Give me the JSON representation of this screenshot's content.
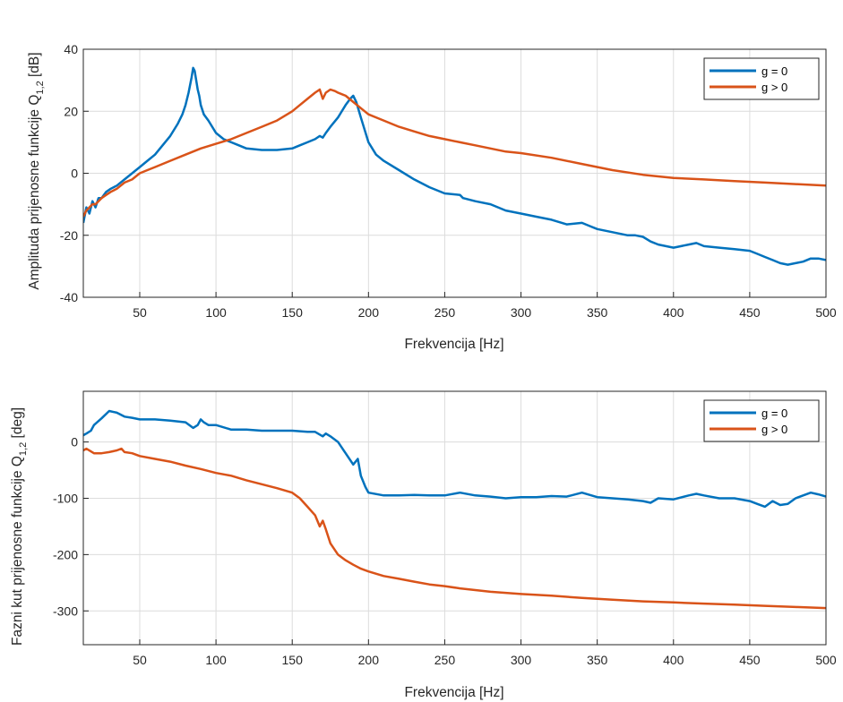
{
  "chart_data": [
    {
      "type": "line",
      "xlabel": "Frekvencija [Hz]",
      "ylabel_main": "Amplituda prijenosne funkcije Q",
      "ylabel_sub": "1,2",
      "ylabel_unit": " [dB]",
      "xlim": [
        13,
        500
      ],
      "ylim": [
        -40,
        40
      ],
      "xticks": [
        50,
        100,
        150,
        200,
        250,
        300,
        350,
        400,
        450,
        500
      ],
      "yticks": [
        -40,
        -20,
        0,
        20,
        40
      ],
      "grid": true,
      "legend_position": "top-right",
      "series": [
        {
          "name": "g = 0",
          "color": "#0072BD",
          "x": [
            13,
            15,
            17,
            19,
            21,
            23,
            25,
            28,
            31,
            35,
            40,
            45,
            50,
            55,
            60,
            65,
            70,
            75,
            78,
            80,
            82,
            84,
            85,
            86,
            87,
            88,
            89,
            90,
            92,
            95,
            100,
            105,
            110,
            115,
            120,
            130,
            140,
            150,
            155,
            160,
            165,
            168,
            170,
            172,
            175,
            180,
            185,
            188,
            190,
            192,
            195,
            200,
            205,
            210,
            220,
            230,
            240,
            250,
            260,
            262,
            270,
            280,
            290,
            300,
            310,
            320,
            330,
            340,
            345,
            350,
            360,
            370,
            375,
            380,
            385,
            390,
            400,
            410,
            415,
            420,
            430,
            440,
            450,
            455,
            460,
            465,
            470,
            475,
            480,
            485,
            490,
            495,
            500
          ],
          "y": [
            -16,
            -11,
            -13,
            -9,
            -11,
            -8,
            -8,
            -6,
            -5,
            -4,
            -2,
            0,
            2,
            4,
            6,
            9,
            12,
            16,
            19,
            22,
            26,
            31,
            34,
            33,
            30,
            27,
            25,
            22,
            19,
            17,
            13,
            11,
            10,
            9,
            8,
            7.5,
            7.5,
            8,
            9,
            10,
            11,
            12,
            11.5,
            13,
            15,
            18,
            22,
            24,
            25,
            23,
            18,
            10,
            6,
            4,
            1,
            -2,
            -4.5,
            -6.5,
            -7,
            -8,
            -9,
            -10,
            -12,
            -13,
            -14,
            -15,
            -16.5,
            -16,
            -17,
            -18,
            -19,
            -20,
            -20,
            -20.5,
            -22,
            -23,
            -24,
            -23,
            -22.5,
            -23.5,
            -24,
            -24.5,
            -25,
            -26,
            -27,
            -28,
            -29,
            -29.5,
            -29,
            -28.5,
            -27.5,
            -27.5,
            -28
          ]
        },
        {
          "name": "g > 0",
          "color": "#D95319",
          "x": [
            13,
            15,
            17,
            19,
            21,
            23,
            25,
            28,
            31,
            35,
            40,
            45,
            50,
            55,
            60,
            65,
            70,
            80,
            90,
            100,
            110,
            120,
            130,
            140,
            150,
            155,
            160,
            165,
            168,
            170,
            172,
            175,
            178,
            180,
            185,
            190,
            195,
            200,
            210,
            220,
            230,
            240,
            250,
            260,
            270,
            280,
            290,
            300,
            320,
            340,
            360,
            380,
            400,
            420,
            440,
            460,
            480,
            500
          ],
          "y": [
            -14,
            -12,
            -11,
            -10,
            -10,
            -9,
            -8,
            -7,
            -6,
            -5,
            -3,
            -2,
            0,
            1,
            2,
            3,
            4,
            6,
            8,
            9.5,
            11,
            13,
            15,
            17,
            20,
            22,
            24,
            26,
            27,
            24,
            26,
            27,
            26.5,
            26,
            25,
            23,
            21,
            19,
            17,
            15,
            13.5,
            12,
            11,
            10,
            9,
            8,
            7,
            6.5,
            5,
            3,
            1,
            -0.5,
            -1.5,
            -2,
            -2.5,
            -3,
            -3.5,
            -4
          ]
        }
      ]
    },
    {
      "type": "line",
      "xlabel": "Frekvencija [Hz]",
      "ylabel_main": "Fazni kut prijenosne funkcije Q",
      "ylabel_sub": "1,2",
      "ylabel_unit": " [deg]",
      "xlim": [
        13,
        500
      ],
      "ylim": [
        -360,
        90
      ],
      "xticks": [
        50,
        100,
        150,
        200,
        250,
        300,
        350,
        400,
        450,
        500
      ],
      "yticks": [
        -300,
        -200,
        -100,
        0
      ],
      "grid": true,
      "legend_position": "top-right",
      "series": [
        {
          "name": "g = 0",
          "color": "#0072BD",
          "x": [
            13,
            15,
            18,
            20,
            25,
            30,
            35,
            40,
            45,
            50,
            60,
            70,
            80,
            85,
            88,
            90,
            92,
            95,
            100,
            110,
            120,
            130,
            140,
            150,
            160,
            165,
            170,
            172,
            175,
            180,
            185,
            190,
            193,
            195,
            198,
            200,
            210,
            220,
            230,
            240,
            250,
            260,
            270,
            280,
            290,
            300,
            310,
            320,
            330,
            340,
            350,
            360,
            370,
            380,
            385,
            390,
            400,
            410,
            415,
            420,
            430,
            440,
            450,
            455,
            460,
            465,
            470,
            475,
            480,
            485,
            490,
            495,
            500
          ],
          "y": [
            12,
            15,
            20,
            30,
            42,
            55,
            52,
            45,
            43,
            40,
            40,
            38,
            35,
            25,
            30,
            40,
            35,
            30,
            30,
            22,
            22,
            20,
            20,
            20,
            18,
            18,
            10,
            15,
            10,
            0,
            -20,
            -40,
            -30,
            -60,
            -80,
            -90,
            -95,
            -95,
            -94,
            -95,
            -95,
            -90,
            -95,
            -97,
            -100,
            -98,
            -98,
            -96,
            -97,
            -90,
            -98,
            -100,
            -102,
            -105,
            -108,
            -100,
            -102,
            -95,
            -92,
            -95,
            -100,
            -100,
            -105,
            -110,
            -115,
            -105,
            -112,
            -110,
            -100,
            -95,
            -90,
            -93,
            -97
          ]
        },
        {
          "name": "g > 0",
          "color": "#D95319",
          "x": [
            13,
            15,
            20,
            25,
            30,
            35,
            38,
            40,
            45,
            50,
            60,
            70,
            80,
            90,
            100,
            110,
            120,
            130,
            140,
            150,
            155,
            160,
            165,
            168,
            170,
            172,
            175,
            180,
            185,
            190,
            195,
            200,
            210,
            220,
            230,
            240,
            250,
            260,
            270,
            280,
            290,
            300,
            320,
            340,
            360,
            380,
            400,
            420,
            440,
            460,
            480,
            500
          ],
          "y": [
            -15,
            -12,
            -20,
            -20,
            -18,
            -15,
            -12,
            -18,
            -20,
            -25,
            -30,
            -35,
            -42,
            -48,
            -55,
            -60,
            -68,
            -75,
            -82,
            -90,
            -100,
            -115,
            -130,
            -150,
            -140,
            -155,
            -180,
            -200,
            -210,
            -218,
            -225,
            -230,
            -238,
            -243,
            -248,
            -253,
            -256,
            -260,
            -263,
            -266,
            -268,
            -270,
            -273,
            -277,
            -280,
            -283,
            -285,
            -287,
            -289,
            -291,
            -293,
            -295
          ]
        }
      ]
    }
  ]
}
